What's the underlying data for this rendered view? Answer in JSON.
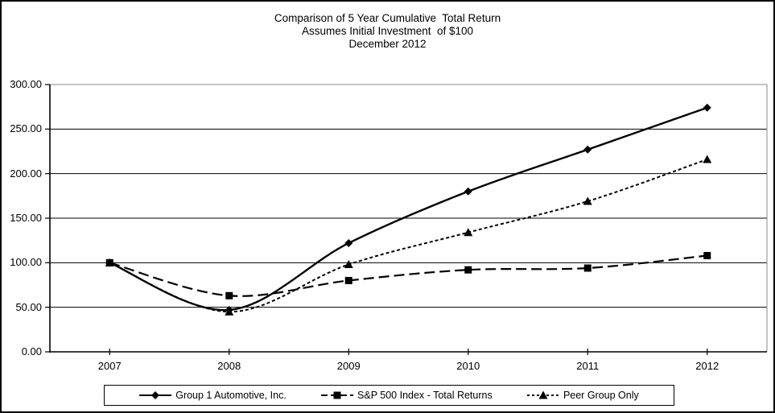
{
  "chart_data": {
    "type": "line",
    "title": "Comparison of 5 Year Cumulative  Total Return",
    "subtitle1": "Assumes Initial Investment  of $100",
    "subtitle2": "December 2012",
    "categories": [
      "2007",
      "2008",
      "2009",
      "2010",
      "2011",
      "2012"
    ],
    "series": [
      {
        "name": "Group 1 Automotive, Inc.",
        "slug": "group-1-automotive",
        "values": [
          100,
          47,
          122,
          180,
          227,
          274
        ],
        "marker": "diamond",
        "line_style": "solid",
        "color": "#000000"
      },
      {
        "name": "S&P 500 Index - Total Returns",
        "slug": "sp-500-index-total-returns",
        "values": [
          100,
          63,
          80,
          92,
          94,
          108
        ],
        "marker": "square",
        "line_style": "long-dash",
        "color": "#000000"
      },
      {
        "name": "Peer Group Only",
        "slug": "peer-group-only",
        "values": [
          100,
          45,
          98,
          134,
          169,
          216
        ],
        "marker": "triangle",
        "line_style": "short-dash",
        "color": "#000000"
      }
    ],
    "y_axis": {
      "min": 0,
      "max": 300,
      "tick_step": 50,
      "tick_labels": [
        "0.00",
        "50.00",
        "100.00",
        "150.00",
        "200.00",
        "250.00",
        "300.00"
      ]
    },
    "grid": true,
    "smoothed_lines": true,
    "legend_position": "bottom",
    "colors": {
      "series": "#000000",
      "gridline": "#000000",
      "plot_border": "#888888",
      "axis": "#000000",
      "background": "#ffffff"
    }
  }
}
